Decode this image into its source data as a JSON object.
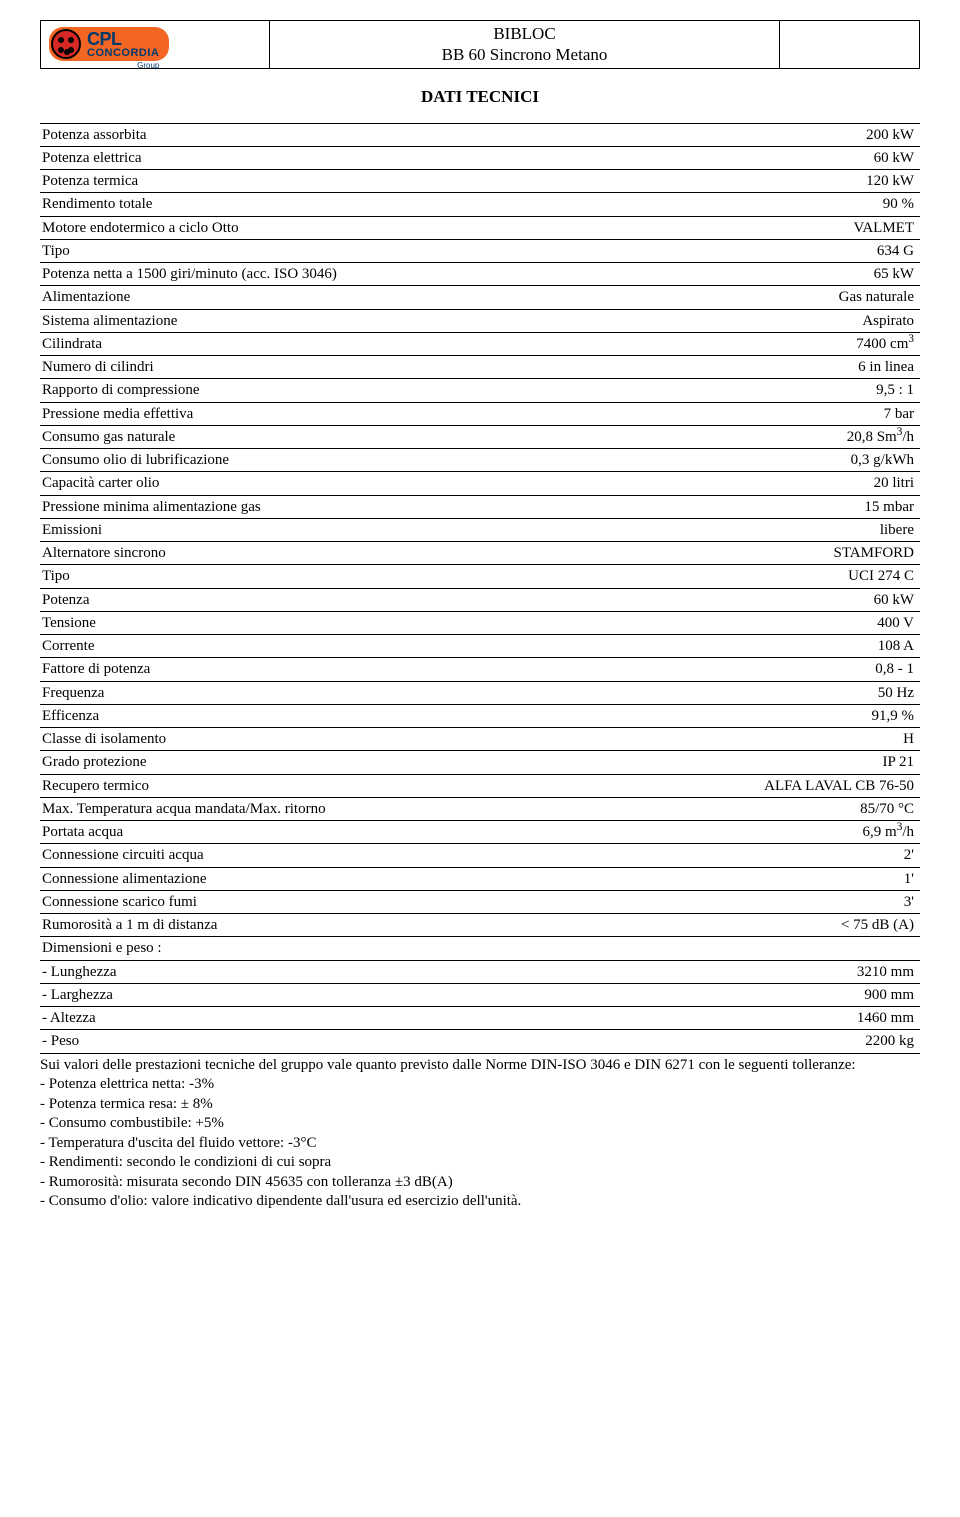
{
  "header": {
    "logo_text1": "CPL",
    "logo_text2": "CONCORDIA",
    "logo_sub": "Group",
    "title_line1": "BIBLOC",
    "title_line2": "BB 60 Sincrono Metano"
  },
  "section_title": "DATI TECNICI",
  "rows": [
    {
      "label": "Potenza assorbita",
      "value": "200 kW"
    },
    {
      "label": "Potenza elettrica",
      "value": "60 kW"
    },
    {
      "label": "Potenza termica",
      "value": "120 kW"
    },
    {
      "label": "Rendimento totale",
      "value": "90 %"
    },
    {
      "label": "Motore endotermico a ciclo Otto",
      "value": "VALMET"
    },
    {
      "label": "Tipo",
      "value": "634 G"
    },
    {
      "label": "Potenza netta a 1500 giri/minuto (acc. ISO 3046)",
      "value": "65 kW"
    },
    {
      "label": "Alimentazione",
      "value": "Gas naturale"
    },
    {
      "label": "Sistema alimentazione",
      "value": "Aspirato"
    },
    {
      "label": "Cilindrata",
      "value_html": "7400 cm<sup>3</sup>"
    },
    {
      "label": "Numero di cilindri",
      "value": "6 in linea"
    },
    {
      "label": "Rapporto di compressione",
      "value": "9,5 : 1"
    },
    {
      "label": "Pressione media effettiva",
      "value": "7 bar"
    },
    {
      "label": "Consumo gas naturale",
      "value_html": "20,8 Sm<sup>3</sup>/h"
    },
    {
      "label": "Consumo olio di lubrificazione",
      "value": "0,3 g/kWh"
    },
    {
      "label": "Capacità carter olio",
      "value": "20 litri"
    },
    {
      "label": "Pressione minima alimentazione  gas",
      "value": "15 mbar"
    },
    {
      "label": "Emissioni",
      "value": "libere"
    },
    {
      "label": "Alternatore sincrono",
      "value": "STAMFORD"
    },
    {
      "label": "Tipo",
      "value": "UCI 274 C"
    },
    {
      "label": "Potenza",
      "value": "60 kW"
    },
    {
      "label": "Tensione",
      "value": "400 V"
    },
    {
      "label": "Corrente",
      "value": "108 A"
    },
    {
      "label": "Fattore di potenza",
      "value": "0,8 - 1"
    },
    {
      "label": "Frequenza",
      "value": "50 Hz"
    },
    {
      "label": "Efficenza",
      "value": "91,9 %"
    },
    {
      "label": "Classe di isolamento",
      "value": "H"
    },
    {
      "label": "Grado protezione",
      "value": "IP 21"
    },
    {
      "label": "Recupero termico",
      "value": "ALFA LAVAL CB  76-50"
    },
    {
      "label": "Max. Temperatura acqua mandata/Max. ritorno",
      "value": "85/70 °C"
    },
    {
      "label": "Portata acqua",
      "value_html": "6,9 m<sup>3</sup>/h"
    },
    {
      "label": "Connessione circuiti  acqua",
      "value": "2'"
    },
    {
      "label": "Connessione alimentazione",
      "value": "1'"
    },
    {
      "label": "Connessione scarico fumi",
      "value": "3'"
    },
    {
      "label": "Rumorosità a 1 m di distanza",
      "value": "< 75 dB (A)"
    },
    {
      "label": "Dimensioni e peso :",
      "value": ""
    },
    {
      "label": "- Lunghezza",
      "value": "3210 mm"
    },
    {
      "label": "- Larghezza",
      "value": "900 mm"
    },
    {
      "label": "- Altezza",
      "value": "1460 mm"
    },
    {
      "label": "- Peso",
      "value": "2200  kg"
    }
  ],
  "notes_intro": "Sui valori delle prestazioni tecniche del gruppo vale quanto previsto dalle Norme DIN-ISO 3046 e DIN 6271 con le seguenti tolleranze:",
  "notes_items": [
    "- Potenza elettrica netta: -3%",
    "- Potenza termica resa: ± 8%",
    "- Consumo combustibile: +5%",
    "- Temperatura d'uscita del fluido vettore: -3°C",
    "- Rendimenti: secondo le condizioni di cui sopra",
    "- Rumorosità: misurata secondo DIN 45635 con tolleranza ±3 dB(A)",
    "- Consumo d'olio: valore indicativo dipendente dall'usura ed esercizio dell'unità."
  ],
  "colors": {
    "logo_bg": "#f26522",
    "logo_circle": "#d62824",
    "logo_text": "#003a6f",
    "border": "#000000",
    "page_bg": "#ffffff"
  }
}
